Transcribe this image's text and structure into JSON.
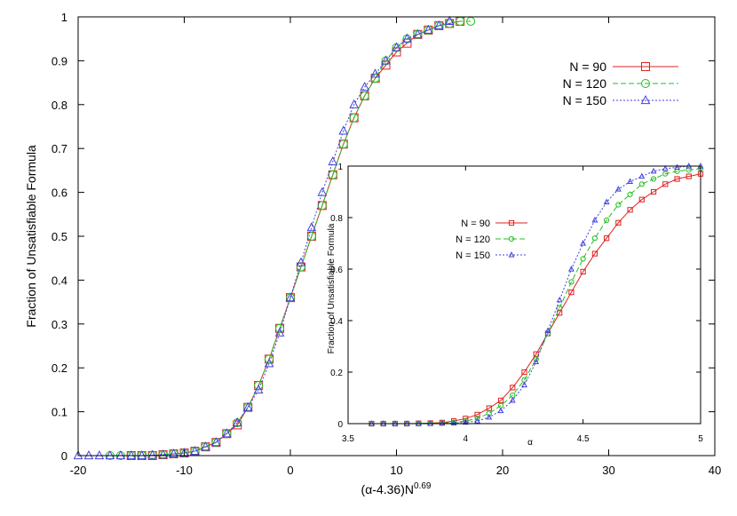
{
  "chart_data": [
    {
      "id": "main",
      "type": "line",
      "xlabel_base": "(α-4.36)N",
      "xlabel_exp": "0.69",
      "ylabel": "Fraction of Unsatisfiable Formula",
      "xlim": [
        -20,
        40
      ],
      "ylim": [
        0,
        1
      ],
      "xticks": [
        -20,
        -10,
        0,
        10,
        20,
        30,
        40
      ],
      "yticks": [
        0,
        0.1,
        0.2,
        0.3,
        0.4,
        0.5,
        0.6,
        0.7,
        0.8,
        0.9,
        1
      ],
      "legend_position": "top-right",
      "series": [
        {
          "name": "N = 90",
          "color": "#e02020",
          "marker": "square",
          "dash": "",
          "x": [
            -15,
            -14,
            -13,
            -12,
            -11,
            -10,
            -9,
            -8,
            -7,
            -6,
            -5,
            -4,
            -3,
            -2,
            -1,
            0,
            1,
            2,
            3,
            4,
            5,
            6,
            7,
            8,
            9,
            10,
            11,
            12,
            13,
            14,
            15,
            16
          ],
          "y": [
            0.0,
            0.0,
            0.0,
            0.002,
            0.004,
            0.006,
            0.01,
            0.02,
            0.03,
            0.05,
            0.07,
            0.11,
            0.16,
            0.22,
            0.29,
            0.36,
            0.43,
            0.5,
            0.57,
            0.64,
            0.71,
            0.77,
            0.82,
            0.86,
            0.89,
            0.92,
            0.94,
            0.96,
            0.97,
            0.98,
            0.985,
            0.99
          ]
        },
        {
          "name": "N = 120",
          "color": "#20c020",
          "marker": "circle",
          "dash": "6,3",
          "x": [
            -17,
            -16,
            -15,
            -14,
            -13,
            -12,
            -11,
            -10,
            -9,
            -8,
            -7,
            -6,
            -5,
            -4,
            -3,
            -2,
            -1,
            0,
            1,
            2,
            3,
            4,
            5,
            6,
            7,
            8,
            9,
            10,
            11,
            12,
            13,
            14,
            15,
            16,
            17
          ],
          "y": [
            0.0,
            0.0,
            0.0,
            0.0,
            0.001,
            0.002,
            0.004,
            0.006,
            0.01,
            0.02,
            0.03,
            0.05,
            0.075,
            0.11,
            0.16,
            0.22,
            0.29,
            0.36,
            0.43,
            0.5,
            0.57,
            0.64,
            0.71,
            0.77,
            0.82,
            0.86,
            0.9,
            0.93,
            0.95,
            0.96,
            0.97,
            0.98,
            0.985,
            0.99,
            0.99
          ]
        },
        {
          "name": "N = 150",
          "color": "#4040e0",
          "marker": "triangle",
          "dash": "2,2",
          "x": [
            -20,
            -19,
            -18,
            -17,
            -16,
            -15,
            -14,
            -13,
            -12,
            -11,
            -10,
            -9,
            -8,
            -7,
            -6,
            -5,
            -4,
            -3,
            -2,
            -1,
            0,
            1,
            2,
            3,
            4,
            5,
            6,
            7,
            8,
            9,
            10,
            11,
            12,
            13,
            14,
            15
          ],
          "y": [
            0.0,
            0.0,
            0.0,
            0.0,
            0.0,
            0.0,
            0.0,
            0.001,
            0.002,
            0.004,
            0.006,
            0.01,
            0.02,
            0.03,
            0.05,
            0.075,
            0.11,
            0.15,
            0.21,
            0.28,
            0.36,
            0.44,
            0.52,
            0.6,
            0.67,
            0.74,
            0.8,
            0.84,
            0.87,
            0.9,
            0.93,
            0.95,
            0.96,
            0.97,
            0.98,
            0.99
          ]
        }
      ]
    },
    {
      "id": "inset",
      "type": "line",
      "xlabel": "α",
      "ylabel": "Fraction of Unsatisfiable Formula",
      "xlim": [
        3.5,
        5
      ],
      "ylim": [
        0,
        1
      ],
      "xticks": [
        3.5,
        4,
        4.5,
        5
      ],
      "yticks": [
        0,
        0.2,
        0.4,
        0.6,
        0.8,
        1
      ],
      "legend_position": "top-left",
      "series": [
        {
          "name": "N = 90",
          "color": "#e02020",
          "marker": "square",
          "dash": "",
          "x": [
            3.6,
            3.65,
            3.7,
            3.75,
            3.8,
            3.85,
            3.9,
            3.95,
            4.0,
            4.05,
            4.1,
            4.15,
            4.2,
            4.25,
            4.3,
            4.35,
            4.4,
            4.45,
            4.5,
            4.55,
            4.6,
            4.65,
            4.7,
            4.75,
            4.8,
            4.85,
            4.9,
            4.95,
            5.0
          ],
          "y": [
            0.0,
            0.0,
            0.0,
            0.0,
            0.001,
            0.002,
            0.004,
            0.01,
            0.02,
            0.035,
            0.06,
            0.09,
            0.14,
            0.2,
            0.27,
            0.35,
            0.43,
            0.51,
            0.59,
            0.66,
            0.72,
            0.78,
            0.83,
            0.87,
            0.9,
            0.93,
            0.95,
            0.96,
            0.97
          ]
        },
        {
          "name": "N = 120",
          "color": "#20c020",
          "marker": "circle",
          "dash": "6,3",
          "x": [
            3.6,
            3.65,
            3.7,
            3.75,
            3.8,
            3.85,
            3.9,
            3.95,
            4.0,
            4.05,
            4.1,
            4.15,
            4.2,
            4.25,
            4.3,
            4.35,
            4.4,
            4.45,
            4.5,
            4.55,
            4.6,
            4.65,
            4.7,
            4.75,
            4.8,
            4.85,
            4.9,
            4.95,
            5.0
          ],
          "y": [
            0.0,
            0.0,
            0.0,
            0.0,
            0.0,
            0.001,
            0.002,
            0.005,
            0.01,
            0.02,
            0.04,
            0.07,
            0.11,
            0.17,
            0.25,
            0.35,
            0.45,
            0.55,
            0.64,
            0.72,
            0.79,
            0.85,
            0.89,
            0.93,
            0.95,
            0.97,
            0.98,
            0.985,
            0.99
          ]
        },
        {
          "name": "N = 150",
          "color": "#4040e0",
          "marker": "triangle",
          "dash": "2,2",
          "x": [
            3.6,
            3.65,
            3.7,
            3.75,
            3.8,
            3.85,
            3.9,
            3.95,
            4.0,
            4.05,
            4.1,
            4.15,
            4.2,
            4.25,
            4.3,
            4.35,
            4.4,
            4.45,
            4.5,
            4.55,
            4.6,
            4.65,
            4.7,
            4.75,
            4.8,
            4.85,
            4.9,
            4.95,
            5.0
          ],
          "y": [
            0.0,
            0.0,
            0.0,
            0.0,
            0.0,
            0.0,
            0.001,
            0.002,
            0.005,
            0.01,
            0.025,
            0.05,
            0.09,
            0.15,
            0.24,
            0.36,
            0.48,
            0.6,
            0.7,
            0.79,
            0.86,
            0.91,
            0.94,
            0.96,
            0.98,
            0.99,
            0.995,
            1.0,
            1.0
          ]
        }
      ]
    }
  ]
}
